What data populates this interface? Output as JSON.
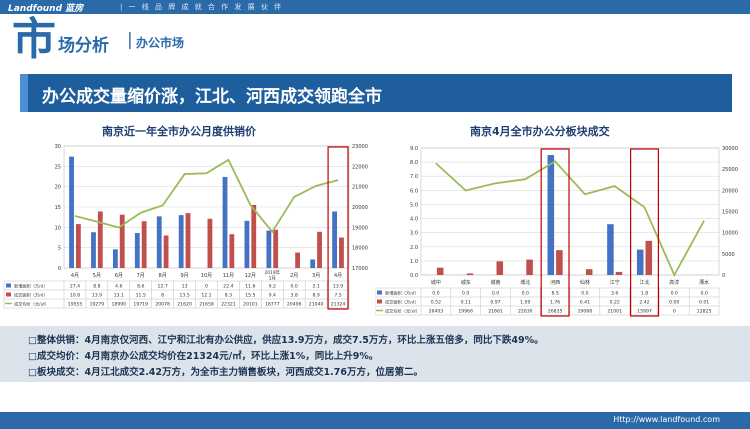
{
  "header": {
    "logo": "Landfound 蓝房",
    "slogan": "| 一 线 品 牌 成 就 合 作 发 展 伙 伴",
    "big_char": "市",
    "title_rest": "场分析",
    "separator": "|",
    "section": "办公市场"
  },
  "headline": "办公成交量缩价涨，江北、河西成交领跑全市",
  "summary": [
    "□整体供销：4月南京仅河西、江宁和江北有办公供应，供应13.9万方，成交7.5万方，环比上涨五倍多，同比下跌49%。",
    "□成交均价：4月南京办公成交均价在21324元/㎡，环比上涨1%，同比上升9%。",
    "□板块成交：4月江北成交2.42万方，为全市主力销售板块，河西成交1.76万方，位居第二。"
  ],
  "footer": "Http://www.landfound.com",
  "colors": {
    "supply": "#4472c4",
    "sales": "#c0504d",
    "price": "#9bbb59",
    "highlight": "#c00000"
  },
  "chart_data": [
    {
      "type": "bar",
      "title": "南京近一年全市办公月度供销价",
      "categories": [
        "4月",
        "5月",
        "6月",
        "7月",
        "8月",
        "9月",
        "10月",
        "11月",
        "12月",
        "2019年1月",
        "2月",
        "3月",
        "4月"
      ],
      "category_lines": [
        [
          "4月"
        ],
        [
          "5月"
        ],
        [
          "6月"
        ],
        [
          "7月"
        ],
        [
          "8月"
        ],
        [
          "9月"
        ],
        [
          "10月"
        ],
        [
          "11月"
        ],
        [
          "12月"
        ],
        [
          "2019年",
          "1月"
        ],
        [
          "2月"
        ],
        [
          "3月"
        ],
        [
          "4月"
        ]
      ],
      "series": [
        {
          "name": "新增面积（万㎡）",
          "type": "bar",
          "axis": "left",
          "values": [
            27.4,
            8.8,
            4.6,
            8.6,
            12.7,
            13,
            0,
            22.4,
            11.6,
            9.2,
            0,
            2.1,
            13.9
          ],
          "labels": [
            "27.4",
            "8.8",
            "4.6",
            "8.6",
            "12.7",
            "13",
            "0",
            "22.4",
            "11.6",
            "9.2",
            "0.0",
            "2.1",
            "13.9"
          ]
        },
        {
          "name": "成交面积（万㎡）",
          "type": "bar",
          "axis": "left",
          "values": [
            10.8,
            13.9,
            13.1,
            11.5,
            8,
            13.5,
            12.1,
            8.3,
            15.5,
            9.4,
            3.8,
            8.9,
            7.5
          ],
          "labels": [
            "10.8",
            "13.9",
            "13.1",
            "11.5",
            "8",
            "13.5",
            "12.1",
            "8.3",
            "15.5",
            "9.4",
            "3.8",
            "8.9",
            "7.5"
          ]
        },
        {
          "name": "成交均价（元/㎡）",
          "type": "line",
          "axis": "right",
          "values": [
            19555,
            19279,
            18990,
            19719,
            20078,
            21620,
            21658,
            22321,
            20101,
            18777,
            20496,
            21040,
            21324
          ],
          "labels": [
            "19555",
            "19279",
            "18990",
            "19719",
            "20078",
            "21620",
            "21658",
            "22321",
            "20101",
            "18777",
            "20496",
            "21040",
            "21324"
          ]
        }
      ],
      "y_left": {
        "min": 0,
        "max": 30,
        "ticks": [
          "0",
          "5",
          "10",
          "15",
          "20",
          "25",
          "30"
        ]
      },
      "y_right": {
        "min": 17000,
        "max": 23000,
        "ticks": [
          "17000",
          "18000",
          "19000",
          "20000",
          "21000",
          "22000",
          "23000"
        ]
      },
      "highlight_index": [
        12
      ],
      "grid": true,
      "legend": "bottom-table"
    },
    {
      "type": "bar",
      "title": "南京4月全市办公分板块成交",
      "categories": [
        "城中",
        "城东",
        "城南",
        "城北",
        "河西",
        "仙林",
        "江宁",
        "江北",
        "高淳",
        "溧水"
      ],
      "series": [
        {
          "name": "新增面积（万㎡）",
          "type": "bar",
          "axis": "left",
          "values": [
            0,
            0,
            0,
            0,
            8.5,
            0,
            3.6,
            1.8,
            0,
            0
          ],
          "labels": [
            "0.0",
            "0.0",
            "0.0",
            "0.0",
            "8.5",
            "0.0",
            "3.6",
            "1.8",
            "0.0",
            "0.0"
          ]
        },
        {
          "name": "成交面积（万㎡）",
          "type": "bar",
          "axis": "left",
          "values": [
            0.52,
            0.11,
            0.97,
            1.09,
            1.76,
            0.41,
            0.22,
            2.42,
            0,
            0.01
          ],
          "labels": [
            "0.52",
            "0.11",
            "0.97",
            "1.09",
            "1.76",
            "0.41",
            "0.22",
            "2.42",
            "0.00",
            "0.01"
          ]
        },
        {
          "name": "成交均价（元/㎡）",
          "type": "line",
          "axis": "right",
          "values": [
            26403,
            19966,
            21661,
            22630,
            26835,
            19068,
            21001,
            15997,
            0,
            12825
          ],
          "labels": [
            "26403",
            "19966",
            "21661",
            "22630",
            "26835",
            "19068",
            "21001",
            "15997",
            "0",
            "12825"
          ]
        }
      ],
      "y_left": {
        "min": 0,
        "max": 9,
        "ticks": [
          "0.0",
          "1.0",
          "2.0",
          "3.0",
          "4.0",
          "5.0",
          "6.0",
          "7.0",
          "8.0",
          "9.0"
        ]
      },
      "y_right": {
        "min": 0,
        "max": 30000,
        "ticks": [
          "0",
          "5000",
          "10000",
          "15000",
          "20000",
          "25000",
          "30000"
        ]
      },
      "highlight_index": [
        4,
        7
      ],
      "grid": true,
      "legend": "bottom-table"
    }
  ]
}
